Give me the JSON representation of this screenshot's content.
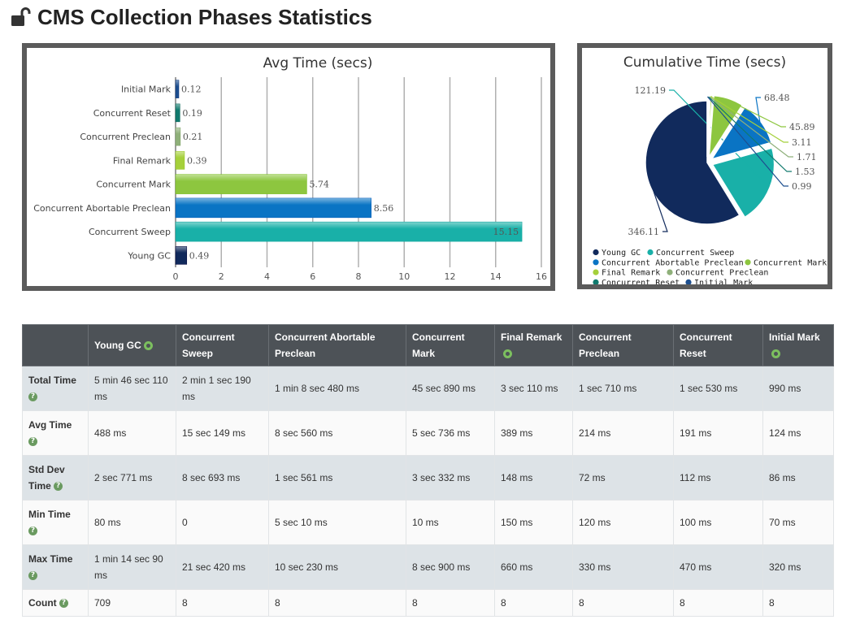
{
  "page": {
    "title": "CMS Collection Phases Statistics"
  },
  "colors": {
    "young_gc": "#112a5c",
    "concurrent_sweep": "#19b0a8",
    "concurrent_abortable_preclean": "#0a74c4",
    "concurrent_mark": "#8dc63f",
    "final_remark": "#a5d03b",
    "concurrent_preclean": "#8fb07a",
    "concurrent_reset": "#117a6e",
    "initial_mark": "#1d4f8f"
  },
  "chart_data": [
    {
      "type": "bar",
      "orientation": "horizontal",
      "title": "Avg Time (secs)",
      "categories": [
        "Initial Mark",
        "Concurrent Reset",
        "Concurrent Preclean",
        "Final Remark",
        "Concurrent Mark",
        "Concurrent Abortable Preclean",
        "Concurrent Sweep",
        "Young GC"
      ],
      "values": [
        0.12,
        0.19,
        0.21,
        0.39,
        5.74,
        8.56,
        15.15,
        0.49
      ],
      "value_labels": [
        "0.12",
        "0.19",
        "0.21",
        "0.39",
        "5.74",
        "8.56",
        "15.15",
        "0.49"
      ],
      "colors": [
        "#1d4f8f",
        "#117a6e",
        "#8fb07a",
        "#a5d03b",
        "#8dc63f",
        "#0a74c4",
        "#19b0a8",
        "#112a5c"
      ],
      "xlim": [
        0,
        16
      ],
      "xticks": [
        0,
        2,
        4,
        6,
        8,
        10,
        12,
        14,
        16
      ],
      "grid": true
    },
    {
      "type": "pie",
      "title": "Cumulative Time (secs)",
      "labels": [
        "Young GC",
        "Concurrent Sweep",
        "Concurrent Abortable Preclean",
        "Concurrent Mark",
        "Final Remark",
        "Concurrent Preclean",
        "Concurrent Reset",
        "Initial Mark"
      ],
      "values": [
        346.11,
        121.19,
        68.48,
        45.89,
        3.11,
        1.71,
        1.53,
        0.99
      ],
      "value_labels": [
        "346.11",
        "121.19",
        "68.48",
        "45.89",
        "3.11",
        "1.71",
        "1.53",
        "0.99"
      ],
      "colors": [
        "#112a5c",
        "#19b0a8",
        "#0a74c4",
        "#8dc63f",
        "#a5d03b",
        "#8fb07a",
        "#117a6e",
        "#1d4f8f"
      ],
      "legend": "bottom"
    }
  ],
  "table": {
    "headers": [
      "",
      "Young GC",
      "Concurrent Sweep",
      "Concurrent Abortable Preclean",
      "Concurrent Mark",
      "Final Remark",
      "Concurrent Preclean",
      "Concurrent Reset",
      "Initial Mark"
    ],
    "header_toggle": [
      false,
      true,
      false,
      false,
      false,
      true,
      false,
      false,
      true
    ],
    "rows": [
      {
        "label": "Total Time",
        "cells": [
          "5 min 46 sec 110 ms",
          "2 min 1 sec 190 ms",
          "1 min 8 sec 480 ms",
          "45 sec 890 ms",
          "3 sec 110 ms",
          "1 sec 710 ms",
          "1 sec 530 ms",
          "990 ms"
        ]
      },
      {
        "label": "Avg Time",
        "cells": [
          "488 ms",
          "15 sec 149 ms",
          "8 sec 560 ms",
          "5 sec 736 ms",
          "389 ms",
          "214 ms",
          "191 ms",
          "124 ms"
        ]
      },
      {
        "label": "Std Dev Time",
        "cells": [
          "2 sec 771 ms",
          "8 sec 693 ms",
          "1 sec 561 ms",
          "3 sec 332 ms",
          "148 ms",
          "72 ms",
          "112 ms",
          "86 ms"
        ]
      },
      {
        "label": "Min Time",
        "cells": [
          "80 ms",
          "0",
          "5 sec 10 ms",
          "10 ms",
          "150 ms",
          "120 ms",
          "100 ms",
          "70 ms"
        ]
      },
      {
        "label": "Max Time",
        "cells": [
          "1 min 14 sec 90 ms",
          "21 sec 420 ms",
          "10 sec 230 ms",
          "8 sec 900 ms",
          "660 ms",
          "330 ms",
          "470 ms",
          "320 ms"
        ]
      },
      {
        "label": "Count",
        "cells": [
          "709",
          "8",
          "8",
          "8",
          "8",
          "8",
          "8",
          "8"
        ]
      }
    ]
  }
}
